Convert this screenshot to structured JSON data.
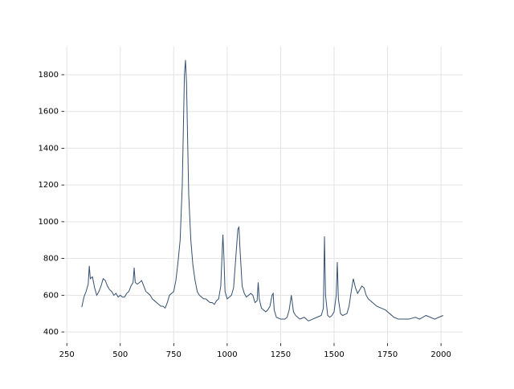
{
  "chart_data": {
    "type": "line",
    "x": [
      320,
      330,
      340,
      350,
      355,
      360,
      370,
      380,
      390,
      400,
      410,
      420,
      430,
      440,
      450,
      460,
      470,
      480,
      490,
      500,
      510,
      520,
      530,
      540,
      550,
      560,
      565,
      570,
      580,
      590,
      600,
      610,
      620,
      630,
      640,
      650,
      660,
      670,
      680,
      690,
      700,
      710,
      720,
      730,
      740,
      750,
      760,
      770,
      780,
      790,
      795,
      800,
      805,
      810,
      815,
      820,
      830,
      840,
      850,
      860,
      870,
      880,
      890,
      900,
      910,
      920,
      930,
      940,
      950,
      960,
      970,
      980,
      985,
      990,
      1000,
      1010,
      1020,
      1030,
      1040,
      1050,
      1055,
      1060,
      1070,
      1080,
      1090,
      1100,
      1110,
      1120,
      1130,
      1140,
      1145,
      1150,
      1160,
      1170,
      1180,
      1190,
      1200,
      1210,
      1215,
      1220,
      1230,
      1250,
      1270,
      1280,
      1290,
      1300,
      1310,
      1320,
      1340,
      1360,
      1380,
      1400,
      1420,
      1440,
      1450,
      1455,
      1460,
      1470,
      1480,
      1490,
      1500,
      1510,
      1515,
      1520,
      1530,
      1540,
      1560,
      1570,
      1580,
      1590,
      1600,
      1610,
      1620,
      1630,
      1640,
      1650,
      1660,
      1680,
      1700,
      1720,
      1740,
      1760,
      1780,
      1800,
      1820,
      1850,
      1880,
      1900,
      1930,
      1950,
      1970,
      1990,
      2010
    ],
    "values": [
      535,
      590,
      620,
      660,
      760,
      690,
      700,
      640,
      600,
      620,
      650,
      690,
      680,
      650,
      630,
      620,
      600,
      610,
      590,
      600,
      590,
      590,
      610,
      620,
      650,
      670,
      750,
      670,
      660,
      670,
      680,
      650,
      620,
      610,
      600,
      580,
      570,
      560,
      550,
      540,
      540,
      530,
      560,
      600,
      610,
      620,
      680,
      780,
      900,
      1200,
      1500,
      1800,
      1880,
      1750,
      1450,
      1150,
      900,
      760,
      680,
      620,
      600,
      590,
      580,
      580,
      570,
      560,
      560,
      550,
      570,
      580,
      650,
      930,
      800,
      620,
      580,
      590,
      600,
      640,
      800,
      960,
      970,
      850,
      650,
      610,
      590,
      600,
      610,
      600,
      560,
      570,
      670,
      580,
      530,
      520,
      510,
      520,
      540,
      600,
      610,
      520,
      480,
      470,
      470,
      480,
      520,
      600,
      510,
      490,
      470,
      480,
      460,
      470,
      480,
      490,
      530,
      920,
      600,
      490,
      480,
      490,
      510,
      600,
      780,
      580,
      500,
      490,
      500,
      540,
      620,
      690,
      640,
      610,
      630,
      650,
      640,
      600,
      580,
      560,
      540,
      530,
      520,
      500,
      480,
      470,
      470,
      470,
      480,
      470,
      490,
      480,
      470,
      480,
      490
    ],
    "color": "#34506f",
    "xlim": [
      238,
      2101
    ],
    "ylim": [
      339,
      1953
    ],
    "xticks": [
      250,
      500,
      750,
      1000,
      1250,
      1500,
      1750,
      2000
    ],
    "yticks": [
      400,
      600,
      800,
      1000,
      1200,
      1400,
      1600,
      1800
    ],
    "grid": true
  }
}
